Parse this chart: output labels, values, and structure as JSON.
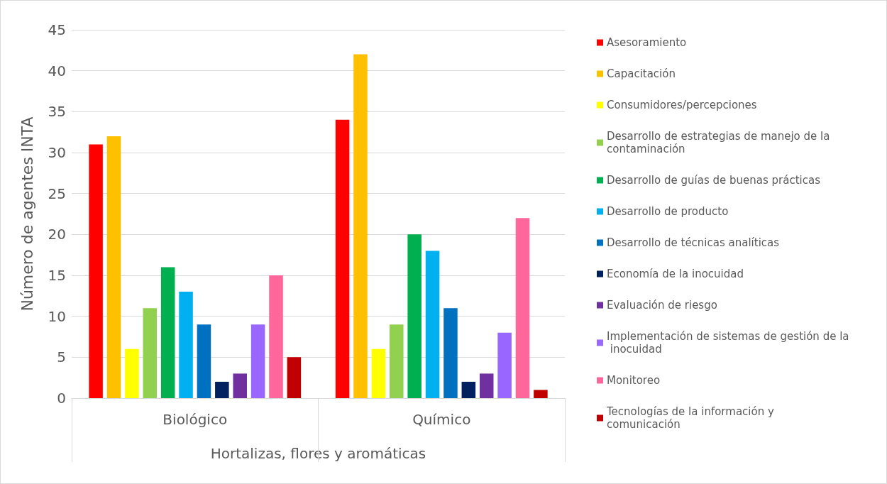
{
  "chart_data": {
    "type": "bar",
    "xlabel": "Hortalizas, flores y aromáticas",
    "ylabel": "Número de agentes INTA",
    "categories": [
      "Biológico",
      "Químico"
    ],
    "ylim": [
      0,
      45
    ],
    "yticks": [
      0,
      5,
      10,
      15,
      20,
      25,
      30,
      35,
      40,
      45
    ],
    "grid": "y",
    "legend": "right",
    "series": [
      {
        "name": "Asesoramiento",
        "color": "#ff0000",
        "values": [
          31,
          34
        ]
      },
      {
        "name": "Capacitación",
        "color": "#ffc000",
        "values": [
          32,
          42
        ]
      },
      {
        "name": "Consumidores/percepciones",
        "color": "#ffff00",
        "values": [
          6,
          6
        ]
      },
      {
        "name": "Desarrollo de estrategias de manejo de la contaminación",
        "color": "#92d050",
        "values": [
          11,
          9
        ]
      },
      {
        "name": "Desarrollo de guías de buenas prácticas",
        "color": "#00b050",
        "values": [
          16,
          20
        ]
      },
      {
        "name": "Desarrollo de producto",
        "color": "#00b0f0",
        "values": [
          13,
          18
        ]
      },
      {
        "name": "Desarrollo de técnicas analíticas",
        "color": "#0070c0",
        "values": [
          9,
          11
        ]
      },
      {
        "name": "Economía de la inocuidad",
        "color": "#002060",
        "values": [
          2,
          2
        ]
      },
      {
        "name": "Evaluación de riesgo",
        "color": "#7030a0",
        "values": [
          3,
          3
        ]
      },
      {
        "name": "Implementación de sistemas de gestión de la inocuidad",
        "color": "#9966ff",
        "values": [
          9,
          8
        ]
      },
      {
        "name": "Monitoreo",
        "color": "#ff6699",
        "values": [
          15,
          22
        ]
      },
      {
        "name": "Tecnologías de la información y comunicación",
        "color": "#c00000",
        "values": [
          5,
          1
        ]
      }
    ]
  }
}
